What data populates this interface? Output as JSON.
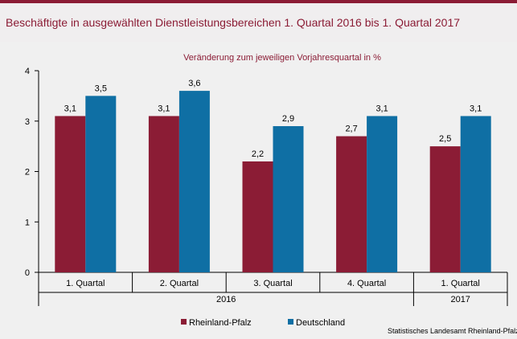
{
  "header": {
    "title": "Beschäftigte in ausgewählten Dienstleistungsbereichen 1. Quartal 2016 bis 1. Quartal 2017"
  },
  "chart_data": {
    "type": "bar",
    "title": "Veränderung zum jeweiligen Vorjahresquartal in %",
    "categories": [
      "1. Quartal",
      "2. Quartal",
      "3. Quartal",
      "4. Quartal",
      "1. Quartal"
    ],
    "year_groups": [
      {
        "label": "2016",
        "span": 4
      },
      {
        "label": "2017",
        "span": 1
      }
    ],
    "series": [
      {
        "name": "Rheinland-Pfalz",
        "color": "#8b1c35",
        "values": [
          3.1,
          3.1,
          2.2,
          2.7,
          2.5
        ],
        "labels": [
          "3,1",
          "3,1",
          "2,2",
          "2,7",
          "2,5"
        ]
      },
      {
        "name": "Deutschland",
        "color": "#0f6fa4",
        "values": [
          3.5,
          3.6,
          2.9,
          3.1,
          3.1
        ],
        "labels": [
          "3,5",
          "3,6",
          "2,9",
          "3,1",
          "3,1"
        ]
      }
    ],
    "yticks": [
      "0",
      "1",
      "2",
      "3",
      "4"
    ],
    "ylim": [
      0,
      4
    ],
    "grid": false,
    "legend_position": "bottom"
  },
  "source": "Statistisches Landesamt Rheinland-Pfalz"
}
